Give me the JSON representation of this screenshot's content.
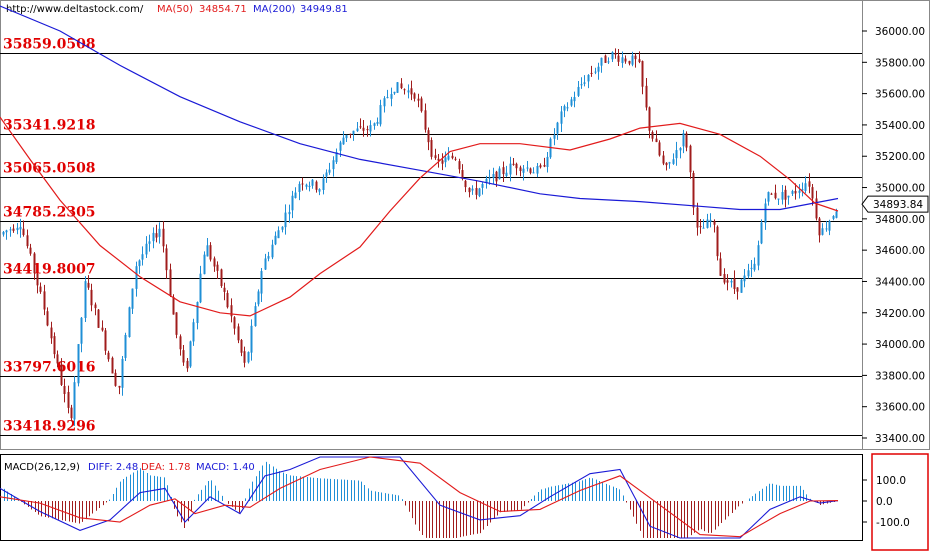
{
  "header": {
    "site": "http://www.deltastock.com/",
    "ma50_label": "MA(50)",
    "ma50_value": "34854.71",
    "ma200_label": "MA(200)",
    "ma200_value": "34949.81"
  },
  "macd_header": {
    "title": "MACD(26,12,9)",
    "diff": "DIFF: 2.48",
    "dea": "DEA: 1.78",
    "macd": "MACD: 1.40"
  },
  "colors": {
    "up": "#1f8fd6",
    "down": "#a01c1c",
    "ma50": "#e21b1b",
    "ma200": "#1a1ad6",
    "level_text": "#e00000",
    "macd_frame": "#e00000"
  },
  "chart_data": [
    {
      "type": "candlestick",
      "y_ticks": [
        "36000.00",
        "35800.00",
        "35600.00",
        "35400.00",
        "35200.00",
        "35000.00",
        "34800.00",
        "34600.00",
        "34400.00",
        "34200.00",
        "34000.00",
        "33800.00",
        "33600.00",
        "33400.00"
      ],
      "ylim": [
        33330,
        36150
      ],
      "last_price": "34893.84",
      "levels": [
        "35859.0508",
        "35341.9218",
        "35065.0508",
        "34785.2305",
        "34419.8007",
        "33797.6016",
        "33418.9296"
      ],
      "ma50": [
        {
          "x": 0,
          "y": 35450
        },
        {
          "x": 30,
          "y": 35180
        },
        {
          "x": 60,
          "y": 34920
        },
        {
          "x": 100,
          "y": 34630
        },
        {
          "x": 140,
          "y": 34430
        },
        {
          "x": 180,
          "y": 34270
        },
        {
          "x": 220,
          "y": 34200
        },
        {
          "x": 250,
          "y": 34180
        },
        {
          "x": 290,
          "y": 34300
        },
        {
          "x": 320,
          "y": 34450
        },
        {
          "x": 360,
          "y": 34620
        },
        {
          "x": 390,
          "y": 34850
        },
        {
          "x": 420,
          "y": 35060
        },
        {
          "x": 450,
          "y": 35230
        },
        {
          "x": 480,
          "y": 35280
        },
        {
          "x": 520,
          "y": 35280
        },
        {
          "x": 570,
          "y": 35240
        },
        {
          "x": 610,
          "y": 35310
        },
        {
          "x": 640,
          "y": 35380
        },
        {
          "x": 680,
          "y": 35410
        },
        {
          "x": 720,
          "y": 35340
        },
        {
          "x": 760,
          "y": 35200
        },
        {
          "x": 790,
          "y": 35050
        },
        {
          "x": 815,
          "y": 34900
        },
        {
          "x": 838,
          "y": 34850
        }
      ],
      "ma200": [
        {
          "x": 0,
          "y": 36160
        },
        {
          "x": 60,
          "y": 36000
        },
        {
          "x": 120,
          "y": 35780
        },
        {
          "x": 180,
          "y": 35580
        },
        {
          "x": 240,
          "y": 35420
        },
        {
          "x": 300,
          "y": 35280
        },
        {
          "x": 360,
          "y": 35180
        },
        {
          "x": 420,
          "y": 35110
        },
        {
          "x": 480,
          "y": 35040
        },
        {
          "x": 540,
          "y": 34960
        },
        {
          "x": 580,
          "y": 34930
        },
        {
          "x": 640,
          "y": 34910
        },
        {
          "x": 700,
          "y": 34880
        },
        {
          "x": 740,
          "y": 34860
        },
        {
          "x": 780,
          "y": 34860
        },
        {
          "x": 838,
          "y": 34930
        }
      ],
      "price_path": [
        {
          "x": 0,
          "y": 34700
        },
        {
          "x": 20,
          "y": 34780
        },
        {
          "x": 45,
          "y": 34200
        },
        {
          "x": 70,
          "y": 33500
        },
        {
          "x": 85,
          "y": 34400
        },
        {
          "x": 100,
          "y": 34100
        },
        {
          "x": 118,
          "y": 33700
        },
        {
          "x": 135,
          "y": 34500
        },
        {
          "x": 160,
          "y": 34750
        },
        {
          "x": 175,
          "y": 34100
        },
        {
          "x": 185,
          "y": 33800
        },
        {
          "x": 205,
          "y": 34650
        },
        {
          "x": 225,
          "y": 34300
        },
        {
          "x": 245,
          "y": 33850
        },
        {
          "x": 262,
          "y": 34500
        },
        {
          "x": 280,
          "y": 34750
        },
        {
          "x": 300,
          "y": 35050
        },
        {
          "x": 320,
          "y": 35000
        },
        {
          "x": 345,
          "y": 35350
        },
        {
          "x": 372,
          "y": 35380
        },
        {
          "x": 392,
          "y": 35650
        },
        {
          "x": 415,
          "y": 35600
        },
        {
          "x": 435,
          "y": 35150
        },
        {
          "x": 455,
          "y": 35200
        },
        {
          "x": 470,
          "y": 34950
        },
        {
          "x": 490,
          "y": 35050
        },
        {
          "x": 515,
          "y": 35150
        },
        {
          "x": 540,
          "y": 35100
        },
        {
          "x": 560,
          "y": 35450
        },
        {
          "x": 585,
          "y": 35700
        },
        {
          "x": 610,
          "y": 35850
        },
        {
          "x": 638,
          "y": 35800
        },
        {
          "x": 648,
          "y": 35400
        },
        {
          "x": 665,
          "y": 35100
        },
        {
          "x": 685,
          "y": 35350
        },
        {
          "x": 697,
          "y": 34700
        },
        {
          "x": 712,
          "y": 34800
        },
        {
          "x": 720,
          "y": 34450
        },
        {
          "x": 735,
          "y": 34350
        },
        {
          "x": 755,
          "y": 34500
        },
        {
          "x": 765,
          "y": 34950
        },
        {
          "x": 790,
          "y": 34950
        },
        {
          "x": 808,
          "y": 35050
        },
        {
          "x": 820,
          "y": 34700
        },
        {
          "x": 838,
          "y": 34890
        }
      ]
    },
    {
      "type": "macd",
      "y_ticks": [
        "100.0",
        "0.0",
        "-100.0"
      ],
      "ylim": [
        -190,
        180
      ],
      "diff": [
        {
          "x": 0,
          "y": 60
        },
        {
          "x": 40,
          "y": -50
        },
        {
          "x": 80,
          "y": -140
        },
        {
          "x": 110,
          "y": -90
        },
        {
          "x": 140,
          "y": 40
        },
        {
          "x": 165,
          "y": 60
        },
        {
          "x": 185,
          "y": -100
        },
        {
          "x": 210,
          "y": 20
        },
        {
          "x": 240,
          "y": -60
        },
        {
          "x": 265,
          "y": 120
        },
        {
          "x": 290,
          "y": 150
        },
        {
          "x": 320,
          "y": 210
        },
        {
          "x": 360,
          "y": 260
        },
        {
          "x": 400,
          "y": 210
        },
        {
          "x": 440,
          "y": -20
        },
        {
          "x": 480,
          "y": -90
        },
        {
          "x": 520,
          "y": -70
        },
        {
          "x": 550,
          "y": 20
        },
        {
          "x": 590,
          "y": 130
        },
        {
          "x": 620,
          "y": 150
        },
        {
          "x": 650,
          "y": -120
        },
        {
          "x": 680,
          "y": -200
        },
        {
          "x": 710,
          "y": -250
        },
        {
          "x": 740,
          "y": -180
        },
        {
          "x": 770,
          "y": -40
        },
        {
          "x": 800,
          "y": 20
        },
        {
          "x": 820,
          "y": -10
        },
        {
          "x": 838,
          "y": 2
        }
      ],
      "dea": [
        {
          "x": 0,
          "y": 20
        },
        {
          "x": 40,
          "y": -10
        },
        {
          "x": 80,
          "y": -80
        },
        {
          "x": 120,
          "y": -100
        },
        {
          "x": 150,
          "y": -20
        },
        {
          "x": 175,
          "y": 10
        },
        {
          "x": 195,
          "y": -60
        },
        {
          "x": 225,
          "y": -20
        },
        {
          "x": 250,
          "y": -30
        },
        {
          "x": 280,
          "y": 60
        },
        {
          "x": 320,
          "y": 150
        },
        {
          "x": 370,
          "y": 220
        },
        {
          "x": 420,
          "y": 180
        },
        {
          "x": 460,
          "y": 40
        },
        {
          "x": 500,
          "y": -50
        },
        {
          "x": 540,
          "y": -40
        },
        {
          "x": 580,
          "y": 50
        },
        {
          "x": 620,
          "y": 120
        },
        {
          "x": 660,
          "y": -20
        },
        {
          "x": 700,
          "y": -160
        },
        {
          "x": 740,
          "y": -170
        },
        {
          "x": 780,
          "y": -60
        },
        {
          "x": 810,
          "y": 0
        },
        {
          "x": 838,
          "y": 2
        }
      ]
    }
  ]
}
